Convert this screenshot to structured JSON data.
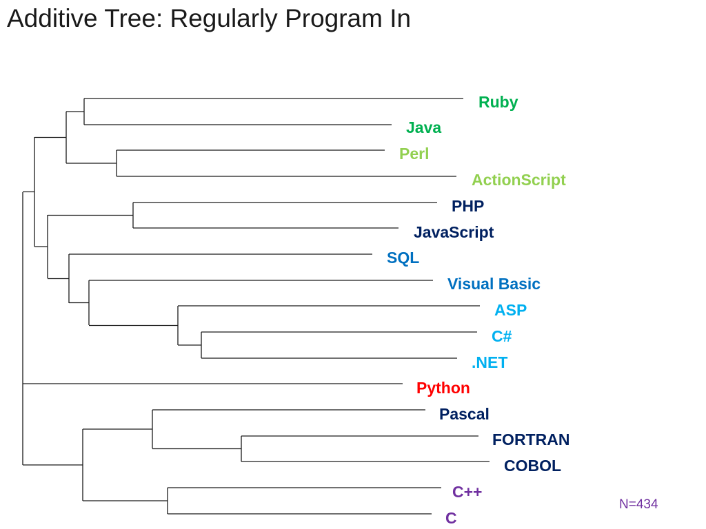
{
  "title": "Additive Tree: Regularly Program In",
  "note": {
    "text": "N=434",
    "color": "#7030a0"
  },
  "leaves": [
    {
      "label": "Ruby",
      "color": "#00b050"
    },
    {
      "label": "Java",
      "color": "#00b050"
    },
    {
      "label": "Perl",
      "color": "#92d050"
    },
    {
      "label": "ActionScript",
      "color": "#92d050"
    },
    {
      "label": "PHP",
      "color": "#002060"
    },
    {
      "label": "JavaScript",
      "color": "#002060"
    },
    {
      "label": "SQL",
      "color": "#0070c0"
    },
    {
      "label": "Visual Basic",
      "color": "#0070c0"
    },
    {
      "label": "ASP",
      "color": "#00b0f0"
    },
    {
      "label": "C#",
      "color": "#00b0f0"
    },
    {
      "label": ".NET",
      "color": "#00b0f0"
    },
    {
      "label": "Python",
      "color": "#ff0000"
    },
    {
      "label": "Pascal",
      "color": "#002060"
    },
    {
      "label": "FORTRAN",
      "color": "#002060"
    },
    {
      "label": "COBOL",
      "color": "#002060"
    },
    {
      "label": "C++",
      "color": "#7030a0"
    },
    {
      "label": "C",
      "color": "#7030a0"
    }
  ]
}
